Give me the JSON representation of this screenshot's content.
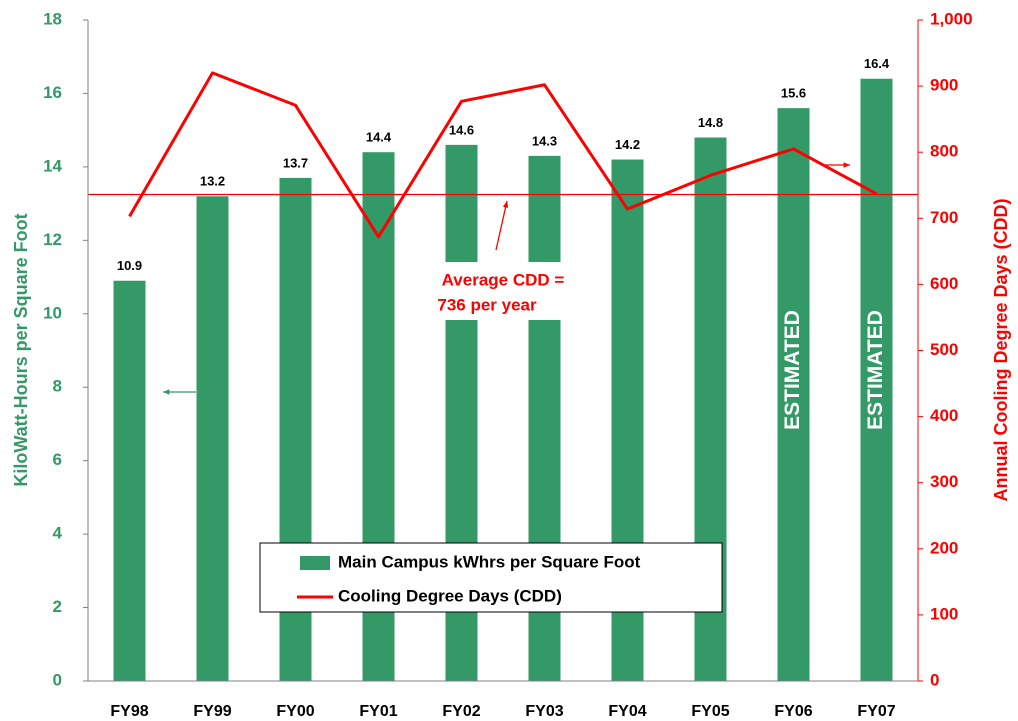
{
  "chart_data": {
    "type": "bar",
    "y_label": "KiloWatt-Hours per Square Foot",
    "y2_label": "Annual Cooling Degree Days (CDD)",
    "categories": [
      "FY98",
      "FY99",
      "FY00",
      "FY01",
      "FY02",
      "FY03",
      "FY04",
      "FY05",
      "FY06",
      "FY07"
    ],
    "series": [
      {
        "name": "Main Campus kWhrs per Square Foot",
        "type": "bar",
        "color": "#339966",
        "values": [
          10.9,
          13.2,
          13.7,
          14.4,
          14.6,
          14.3,
          14.2,
          14.8,
          15.6,
          16.4
        ]
      },
      {
        "name": "Cooling Degree Days (CDD)",
        "type": "line",
        "axis": "y2",
        "color": "#ff0000",
        "values": [
          703,
          920,
          871,
          672,
          877,
          902,
          714,
          765,
          805,
          737
        ]
      }
    ],
    "ylim": [
      0,
      18
    ],
    "yticks": [
      0,
      2,
      4,
      6,
      8,
      10,
      12,
      14,
      16,
      18
    ],
    "y2lim": [
      0,
      1000
    ],
    "y2ticks": [
      0,
      100,
      200,
      300,
      400,
      500,
      600,
      700,
      800,
      900,
      {
        "value": 1000,
        "label": "1,000"
      }
    ],
    "reference_line": {
      "value": 736,
      "axis": "y2",
      "color": "#ff0000"
    },
    "annotations": [
      "Average CDD =",
      "736 per year",
      "ESTIMATED",
      "ESTIMATED"
    ]
  }
}
